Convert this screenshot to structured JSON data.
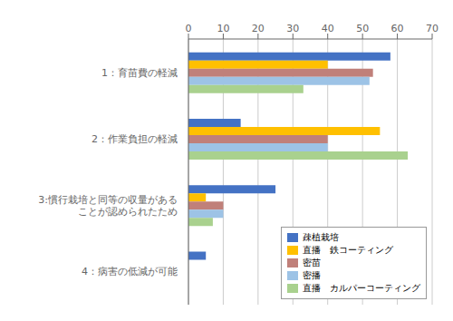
{
  "chart_data": {
    "type": "bar",
    "orientation": "horizontal",
    "categories": [
      "1：育苗費の軽減",
      "2：作業負担の軽減",
      "3:慣行栽培と同等の収量がある\nことが認められたため",
      "4：病害の低減が可能"
    ],
    "series": [
      {
        "name": "疎植栽培",
        "color": "#4472C4",
        "values": [
          58,
          15,
          25,
          5
        ]
      },
      {
        "name": "直播　鉄コーティング",
        "color": "#FFC000",
        "values": [
          40,
          55,
          5,
          0
        ]
      },
      {
        "name": "密苗",
        "color": "#C0807A",
        "values": [
          53,
          40,
          10,
          0
        ]
      },
      {
        "name": "密播",
        "color": "#9DC3E6",
        "values": [
          52,
          40,
          10,
          0
        ]
      },
      {
        "name": "直播　カルパーコーティング",
        "color": "#A9D18E",
        "values": [
          33,
          63,
          7,
          0
        ]
      }
    ],
    "xlim": [
      0,
      70
    ],
    "xticks": [
      0,
      10,
      20,
      30,
      40,
      50,
      60,
      70
    ],
    "grid": true,
    "legend": "lower right"
  }
}
